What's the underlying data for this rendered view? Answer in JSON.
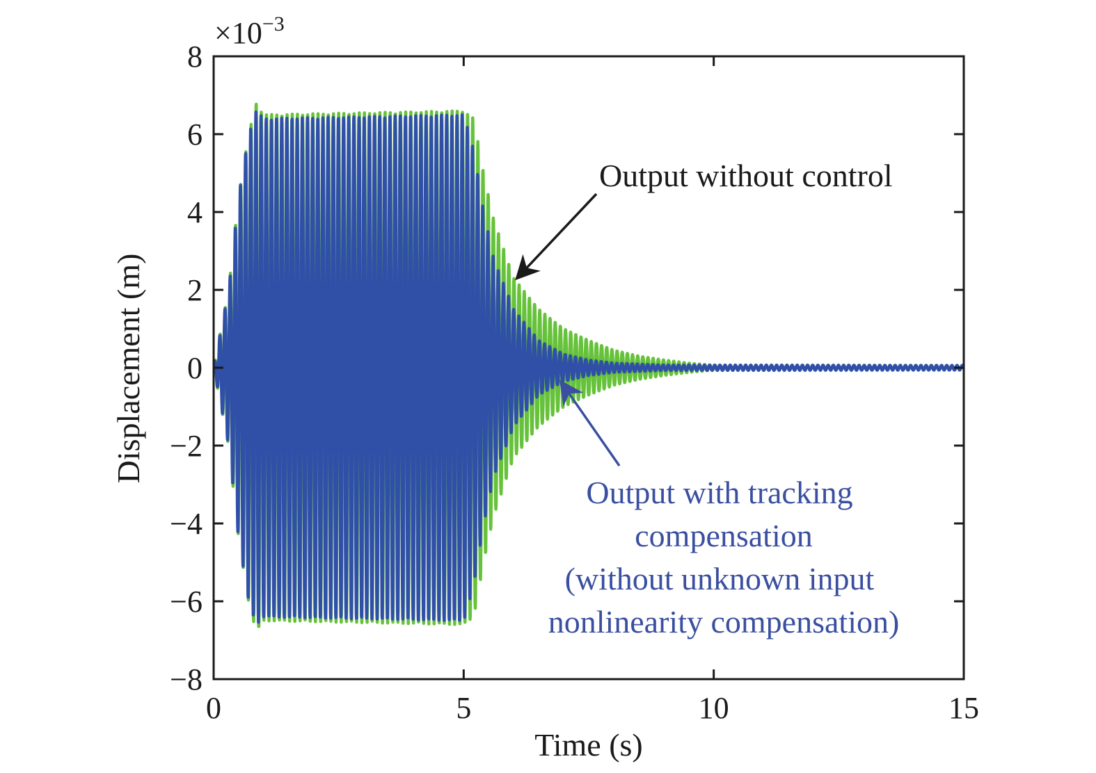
{
  "chart_data": {
    "type": "line",
    "xlabel": "Time (s)",
    "ylabel": "Displacement (m)",
    "y_multiplier_label": "×10",
    "y_multiplier_exponent": "−3",
    "xlim": [
      0,
      15
    ],
    "ylim": [
      -8,
      8
    ],
    "x_ticks": [
      0,
      5,
      10,
      15
    ],
    "x_tick_labels": [
      "0",
      "5",
      "10",
      "15"
    ],
    "y_ticks": [
      -8,
      -6,
      -4,
      -2,
      0,
      2,
      4,
      6,
      8
    ],
    "y_tick_labels": [
      "−8",
      "−6",
      "−4",
      "−2",
      "0",
      "2",
      "4",
      "6",
      "8"
    ],
    "grid": false,
    "series": [
      {
        "label": "Output without control",
        "color": "#66c23a",
        "frequency_hz": 9.7,
        "amplitude_envelope": [
          [
            0,
            0
          ],
          [
            0.3,
            2
          ],
          [
            0.5,
            4.4
          ],
          [
            0.7,
            6
          ],
          [
            0.85,
            6.8
          ],
          [
            1,
            6.5
          ],
          [
            5,
            6.6
          ],
          [
            5.2,
            6.4
          ],
          [
            5.4,
            5
          ],
          [
            5.6,
            3.8
          ],
          [
            6,
            2.3
          ],
          [
            6.5,
            1.5
          ],
          [
            7,
            1.0
          ],
          [
            7.5,
            0.7
          ],
          [
            8,
            0.45
          ],
          [
            8.5,
            0.3
          ],
          [
            9,
            0.2
          ],
          [
            9.5,
            0.12
          ],
          [
            10,
            0.06
          ],
          [
            11,
            0.03
          ],
          [
            15,
            0.02
          ]
        ]
      },
      {
        "label": "Output with tracking compensation (without unknown input nonlinearity compensation)",
        "color": "#3050a8",
        "frequency_hz": 9.7,
        "amplitude_envelope": [
          [
            0,
            0
          ],
          [
            0.3,
            2
          ],
          [
            0.5,
            4.4
          ],
          [
            0.7,
            6
          ],
          [
            0.85,
            6.6
          ],
          [
            1,
            6.4
          ],
          [
            5,
            6.5
          ],
          [
            5.2,
            5.6
          ],
          [
            5.4,
            4
          ],
          [
            5.6,
            2.8
          ],
          [
            6,
            1.5
          ],
          [
            6.5,
            0.7
          ],
          [
            7,
            0.35
          ],
          [
            7.5,
            0.2
          ],
          [
            8,
            0.12
          ],
          [
            9,
            0.07
          ],
          [
            15,
            0.06
          ]
        ]
      }
    ],
    "annotations": [
      {
        "lines": [
          "Output without control"
        ],
        "color": "#1a1a1a",
        "arrow_to": [
          6.0,
          2.3
        ]
      },
      {
        "lines": [
          "Output with tracking",
          "compensation",
          "(without unknown input",
          "nonlinearity compensation)"
        ],
        "color": "#3a4fa0",
        "arrow_to": [
          6.9,
          -0.4
        ]
      }
    ]
  }
}
